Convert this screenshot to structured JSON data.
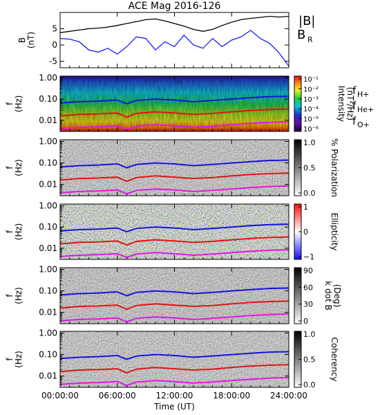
{
  "chart_data": {
    "type": "line",
    "title": "ACE Mag 2016-126",
    "xlabel": "Time (UT)",
    "x_tick_labels": [
      "00:00:00",
      "06:00:00",
      "12:00:00",
      "18:00:00",
      "24:00:00"
    ],
    "xlim_hours": [
      0,
      24
    ],
    "panels": [
      {
        "kind": "line",
        "ylabel": "B (nT)",
        "ylim": [
          -7,
          10
        ],
        "y_ticks": [
          -5,
          0,
          5
        ],
        "legend": [
          {
            "label": "|B|",
            "color": "#000000"
          },
          {
            "label": "B_R",
            "color": "#1a1aff"
          }
        ],
        "series": [
          {
            "name": "|B|",
            "color": "#000000",
            "x": [
              0,
              1,
              2,
              3,
              4,
              5,
              6,
              7,
              8,
              9,
              10,
              11,
              12,
              13,
              14,
              15,
              16,
              17,
              18,
              19,
              20,
              21,
              22,
              23,
              24
            ],
            "values": [
              3.8,
              4.2,
              4.6,
              5.0,
              5.2,
              5.5,
              6.0,
              6.6,
              7.2,
              7.8,
              8.0,
              7.4,
              6.6,
              5.8,
              4.8,
              4.2,
              4.8,
              6.0,
              7.0,
              7.8,
              8.2,
              8.5,
              8.8,
              8.6,
              8.8
            ]
          },
          {
            "name": "B_R",
            "color": "#1a1aff",
            "x": [
              0,
              1,
              2,
              3,
              4,
              5,
              6,
              7,
              8,
              9,
              10,
              11,
              12,
              13,
              14,
              15,
              16,
              17,
              18,
              19,
              20,
              21,
              22,
              23,
              24
            ],
            "values": [
              2.0,
              1.8,
              1.0,
              -1.5,
              -2.2,
              -1.0,
              -2.8,
              -0.5,
              2.5,
              2.0,
              -1.5,
              1.0,
              -0.5,
              3.0,
              0.0,
              -1.0,
              2.0,
              -0.5,
              1.5,
              2.5,
              4.5,
              2.0,
              0.5,
              -2.5,
              -6.5
            ]
          }
        ]
      },
      {
        "kind": "spectrogram",
        "ylabel": "f (Hz)",
        "ylim": [
          0.003,
          1.2
        ],
        "y_scale": "log",
        "y_tick_labels": [
          "1.00",
          "0.10",
          "0.01"
        ],
        "colorbar": {
          "label": "Intensity (nT²/Hz)",
          "scale": "log",
          "tick_labels": [
            "10⁻¹",
            "10⁻²",
            "10⁻³",
            "10⁻⁴",
            "10⁻⁵",
            "10⁻⁶"
          ]
        },
        "legend": [
          {
            "label": "f_H+",
            "color": "#1a1aaa"
          },
          {
            "label": "f_He+",
            "color": "#d42020"
          },
          {
            "label": "f_O+",
            "color": "#e020e0"
          }
        ]
      },
      {
        "kind": "spectrogram",
        "ylabel": "f (Hz)",
        "ylim": [
          0.003,
          1.2
        ],
        "y_scale": "log",
        "y_tick_labels": [
          "1.00",
          "0.10",
          "0.01"
        ],
        "colorbar": {
          "label": "% Polarization",
          "scale": "linear",
          "range": [
            0,
            1
          ],
          "tick_labels": [
            "1.0",
            "0.5",
            "0.0"
          ]
        }
      },
      {
        "kind": "spectrogram",
        "ylabel": "f (Hz)",
        "ylim": [
          0.003,
          1.2
        ],
        "y_scale": "log",
        "y_tick_labels": [
          "1.00",
          "0.10",
          "0.01"
        ],
        "colorbar": {
          "label": "Ellipticity",
          "scale": "linear",
          "range": [
            -1,
            1
          ],
          "tick_labels": [
            "1",
            "0",
            "−1"
          ]
        }
      },
      {
        "kind": "spectrogram",
        "ylabel": "f (Hz)",
        "ylim": [
          0.003,
          1.2
        ],
        "y_scale": "log",
        "y_tick_labels": [
          "1.00",
          "0.10",
          "0.01"
        ],
        "colorbar": {
          "label": "k dot B (Deg)",
          "scale": "linear",
          "range": [
            0,
            90
          ],
          "tick_labels": [
            "90",
            "60",
            "30",
            "0"
          ]
        }
      },
      {
        "kind": "spectrogram",
        "ylabel": "f (Hz)",
        "ylim": [
          0.003,
          1.2
        ],
        "y_scale": "log",
        "y_tick_labels": [
          "1.00",
          "0.10",
          "0.01"
        ],
        "colorbar": {
          "label": "Coherency",
          "scale": "linear",
          "range": [
            0,
            1
          ],
          "tick_labels": [
            "1.0",
            "0.5",
            "0.0"
          ]
        }
      }
    ],
    "gyrofrequency_lines": [
      {
        "name": "f_H+",
        "color": "#1414dc",
        "x": [
          0,
          2,
          4,
          6,
          7,
          8,
          10,
          12,
          14,
          16,
          18,
          20,
          22,
          24
        ],
        "values": [
          0.065,
          0.075,
          0.08,
          0.09,
          0.06,
          0.085,
          0.1,
          0.09,
          0.075,
          0.085,
          0.1,
          0.115,
          0.13,
          0.135
        ]
      },
      {
        "name": "f_He+",
        "color": "#e01414",
        "x": [
          0,
          2,
          4,
          6,
          7,
          8,
          10,
          12,
          14,
          16,
          18,
          20,
          22,
          24
        ],
        "values": [
          0.016,
          0.019,
          0.02,
          0.022,
          0.014,
          0.021,
          0.025,
          0.022,
          0.019,
          0.021,
          0.025,
          0.029,
          0.032,
          0.034
        ]
      },
      {
        "name": "f_O+",
        "color": "#e614e6",
        "x": [
          0,
          2,
          4,
          6,
          7,
          8,
          10,
          12,
          14,
          16,
          18,
          20,
          22,
          24
        ],
        "values": [
          0.0041,
          0.0047,
          0.005,
          0.0056,
          0.0037,
          0.0053,
          0.0062,
          0.0056,
          0.0047,
          0.0053,
          0.0062,
          0.0072,
          0.0081,
          0.0085
        ]
      }
    ]
  }
}
